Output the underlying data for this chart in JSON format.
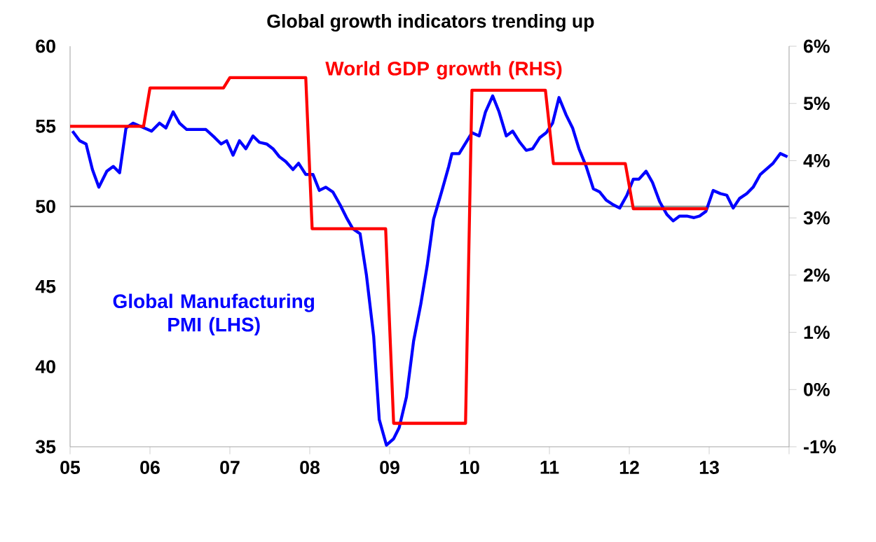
{
  "chart_data": {
    "type": "line",
    "title": "Global growth indicators trending up",
    "xlim": [
      2005,
      2014
    ],
    "xticks": [
      {
        "value": 2005,
        "label": "05"
      },
      {
        "value": 2006,
        "label": "06"
      },
      {
        "value": 2007,
        "label": "07"
      },
      {
        "value": 2008,
        "label": "08"
      },
      {
        "value": 2009,
        "label": "09"
      },
      {
        "value": 2010,
        "label": "10"
      },
      {
        "value": 2011,
        "label": "11"
      },
      {
        "value": 2012,
        "label": "12"
      },
      {
        "value": 2013,
        "label": "13"
      },
      {
        "value": 2014,
        "label": null
      }
    ],
    "ylim": [
      35,
      60
    ],
    "yticks": [
      35,
      40,
      45,
      50,
      55,
      60
    ],
    "y2lim": [
      -1,
      6
    ],
    "y2ticks": [
      {
        "value": -1,
        "label": "-1%"
      },
      {
        "value": 0,
        "label": "0%"
      },
      {
        "value": 1,
        "label": "1%"
      },
      {
        "value": 2,
        "label": "2%"
      },
      {
        "value": 3,
        "label": "3%"
      },
      {
        "value": 4,
        "label": "4%"
      },
      {
        "value": 5,
        "label": "5%"
      },
      {
        "value": 6,
        "label": "6%"
      }
    ],
    "grid": false,
    "marker": "none",
    "line_style": "solid",
    "ref_lines": [
      {
        "axis": "y",
        "value": 50,
        "color": "#808080"
      }
    ],
    "series": [
      {
        "name": "Global Manufacturing PMI (LHS)",
        "color": "#0000ff",
        "x": [
          2005.03,
          2005.12,
          2005.2,
          2005.28,
          2005.36,
          2005.46,
          2005.54,
          2005.62,
          2005.7,
          2005.79,
          2005.88,
          2006.02,
          2006.12,
          2006.2,
          2006.29,
          2006.37,
          2006.46,
          2006.7,
          2006.81,
          2006.89,
          2006.96,
          2007.04,
          2007.12,
          2007.2,
          2007.29,
          2007.37,
          2007.46,
          2007.54,
          2007.62,
          2007.7,
          2007.79,
          2007.86,
          2007.95,
          2008.04,
          2008.12,
          2008.2,
          2008.29,
          2008.38,
          2008.46,
          2008.54,
          2008.63,
          2008.71,
          2008.8,
          2008.87,
          2008.96,
          2009.05,
          2009.12,
          2009.21,
          2009.3,
          2009.39,
          2009.47,
          2009.55,
          2009.65,
          2009.74,
          2009.78,
          2009.87,
          2010.03,
          2010.12,
          2010.2,
          2010.29,
          2010.37,
          2010.46,
          2010.54,
          2010.63,
          2010.71,
          2010.79,
          2010.88,
          2010.96,
          2011.04,
          2011.12,
          2011.21,
          2011.29,
          2011.37,
          2011.46,
          2011.55,
          2011.63,
          2011.71,
          2011.8,
          2011.88,
          2011.97,
          2012.05,
          2012.12,
          2012.21,
          2012.29,
          2012.38,
          2012.47,
          2012.55,
          2012.63,
          2012.72,
          2012.81,
          2012.88,
          2012.96,
          2013.05,
          2013.14,
          2013.22,
          2013.3,
          2013.38,
          2013.47,
          2013.55,
          2013.64,
          2013.71,
          2013.8,
          2013.89,
          2013.98
        ],
        "values": [
          54.7,
          54.1,
          53.9,
          52.3,
          51.2,
          52.2,
          52.5,
          52.1,
          54.9,
          55.2,
          55.0,
          54.7,
          55.2,
          54.9,
          55.9,
          55.2,
          54.8,
          54.8,
          54.3,
          53.9,
          54.1,
          53.2,
          54.1,
          53.6,
          54.4,
          54.0,
          53.9,
          53.6,
          53.1,
          52.8,
          52.3,
          52.7,
          52.0,
          52.0,
          51.0,
          51.2,
          50.9,
          50.1,
          49.3,
          48.6,
          48.3,
          45.7,
          41.9,
          36.7,
          35.1,
          35.5,
          36.2,
          38.1,
          41.6,
          43.9,
          46.3,
          49.2,
          50.9,
          52.5,
          53.3,
          53.3,
          54.6,
          54.4,
          55.9,
          56.9,
          55.9,
          54.4,
          54.7,
          54.0,
          53.5,
          53.6,
          54.3,
          54.6,
          55.2,
          56.8,
          55.7,
          54.9,
          53.6,
          52.5,
          51.1,
          50.9,
          50.4,
          50.1,
          49.9,
          50.7,
          51.7,
          51.7,
          52.2,
          51.5,
          50.3,
          49.5,
          49.1,
          49.4,
          49.4,
          49.3,
          49.4,
          49.7,
          51.0,
          50.8,
          50.7,
          49.9,
          50.5,
          50.8,
          51.2,
          52.0,
          52.3,
          52.7,
          53.3,
          53.1
        ]
      },
      {
        "name": "World GDP growth (RHS)",
        "color": "#ff0000",
        "axis": "y2",
        "x": [
          2005,
          2005.92,
          2006,
          2006.92,
          2007,
          2007.95,
          2008.03,
          2008.95,
          2009.05,
          2009.95,
          2010.03,
          2010.95,
          2011.05,
          2011.95,
          2012.05,
          2012.98
        ],
        "values": [
          4.6,
          4.6,
          5.27,
          5.27,
          5.45,
          5.45,
          2.81,
          2.81,
          -0.59,
          -0.59,
          5.23,
          5.23,
          3.95,
          3.95,
          3.16,
          3.16
        ]
      }
    ]
  }
}
